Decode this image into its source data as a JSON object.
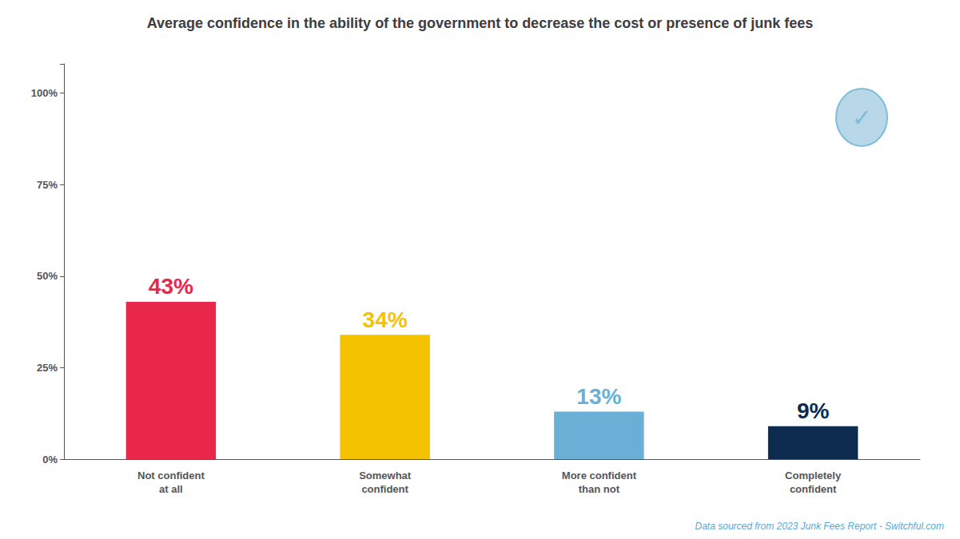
{
  "chart_data": {
    "type": "bar",
    "title": "Average confidence in the ability of the government to decrease the cost or presence of junk fees",
    "categories": [
      "Not confident\nat all",
      "Somewhat\nconfident",
      "More confident\nthan not",
      "Completely\nconfident"
    ],
    "values": [
      43,
      34,
      13,
      9
    ],
    "value_labels": [
      "43%",
      "34%",
      "13%",
      "9%"
    ],
    "colors": [
      "#e8274b",
      "#f5c200",
      "#6aafd6",
      "#0d2b4e"
    ],
    "ylim": [
      0,
      108
    ],
    "yticks": [
      {
        "value": 0,
        "label": "0%"
      },
      {
        "value": 25,
        "label": "25%"
      },
      {
        "value": 50,
        "label": "50%"
      },
      {
        "value": 75,
        "label": "75%"
      },
      {
        "value": 100,
        "label": "100%"
      }
    ],
    "grid": false,
    "data_labels": true,
    "annotations": [
      "Data sourced from 2023 Junk Fees Report - Switchful.com",
      "✓"
    ]
  }
}
